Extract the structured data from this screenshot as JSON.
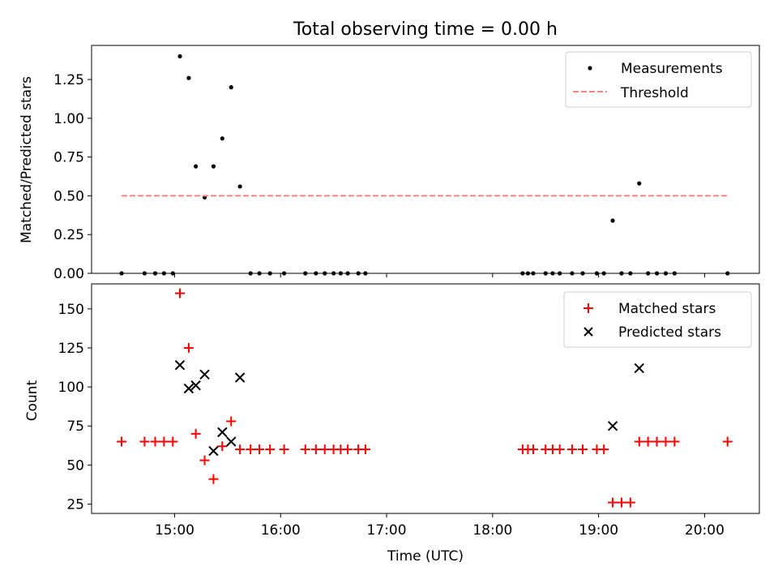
{
  "title": "Total observing time = 0.00 h",
  "xlabel": "Time (UTC)",
  "chart_data": [
    {
      "type": "scatter",
      "ylabel": "Matched/Predicted stars",
      "ylim": [
        0,
        1.47
      ],
      "xlim": [
        "14:13",
        "20:31"
      ],
      "xticks": [
        "15:00",
        "16:00",
        "17:00",
        "18:00",
        "19:00",
        "20:00"
      ],
      "show_xtick_labels": false,
      "yticks": [
        "0.00",
        "0.25",
        "0.50",
        "0.75",
        "1.00",
        "1.25"
      ],
      "ytick_values": [
        0,
        0.25,
        0.5,
        0.75,
        1.0,
        1.25
      ],
      "legend": "top-right",
      "series": [
        {
          "name": "Measurements",
          "marker": "dot",
          "color": "#000000",
          "points": [
            [
              "14:30",
              0
            ],
            [
              "14:43",
              0
            ],
            [
              "14:49",
              0
            ],
            [
              "14:54",
              0
            ],
            [
              "14:59",
              0
            ],
            [
              "15:03",
              1.4
            ],
            [
              "15:08",
              1.26
            ],
            [
              "15:12",
              0.69
            ],
            [
              "15:17",
              0.49
            ],
            [
              "15:22",
              0.69
            ],
            [
              "15:27",
              0.87
            ],
            [
              "15:32",
              1.2
            ],
            [
              "15:37",
              0.56
            ],
            [
              "15:43",
              0
            ],
            [
              "15:48",
              0
            ],
            [
              "15:54",
              0
            ],
            [
              "16:02",
              0
            ],
            [
              "16:14",
              0
            ],
            [
              "16:20",
              0
            ],
            [
              "16:25",
              0
            ],
            [
              "16:30",
              0
            ],
            [
              "16:34",
              0
            ],
            [
              "16:38",
              0
            ],
            [
              "16:44",
              0
            ],
            [
              "16:48",
              0
            ],
            [
              "18:17",
              0
            ],
            [
              "18:20",
              0
            ],
            [
              "18:23",
              0
            ],
            [
              "18:30",
              0
            ],
            [
              "18:34",
              0
            ],
            [
              "18:38",
              0
            ],
            [
              "18:45",
              0
            ],
            [
              "18:51",
              0
            ],
            [
              "18:59",
              0
            ],
            [
              "19:03",
              0
            ],
            [
              "19:08",
              0.34
            ],
            [
              "19:13",
              0
            ],
            [
              "19:18",
              0
            ],
            [
              "19:23",
              0.58
            ],
            [
              "19:28",
              0
            ],
            [
              "19:33",
              0
            ],
            [
              "19:38",
              0
            ],
            [
              "19:43",
              0
            ],
            [
              "20:13",
              0
            ]
          ]
        },
        {
          "name": "Threshold",
          "type": "line",
          "style": "dashed",
          "color": "#ff8080",
          "points": [
            [
              "14:30",
              0.5
            ],
            [
              "20:13",
              0.5
            ]
          ]
        }
      ]
    },
    {
      "type": "scatter",
      "ylabel": "Count",
      "ylim": [
        19,
        166
      ],
      "xlim": [
        "14:13",
        "20:31"
      ],
      "xticks": [
        "15:00",
        "16:00",
        "17:00",
        "18:00",
        "19:00",
        "20:00"
      ],
      "xtick_labels": [
        "15:00",
        "16:00",
        "17:00",
        "18:00",
        "19:00",
        "20:00"
      ],
      "yticks": [
        "25",
        "50",
        "75",
        "100",
        "125",
        "150"
      ],
      "ytick_values": [
        25,
        50,
        75,
        100,
        125,
        150
      ],
      "legend": "top-right",
      "series": [
        {
          "name": "Matched stars",
          "marker": "plus",
          "color": "#ff0000",
          "points": [
            [
              "14:30",
              65
            ],
            [
              "14:43",
              65
            ],
            [
              "14:49",
              65
            ],
            [
              "14:54",
              65
            ],
            [
              "14:59",
              65
            ],
            [
              "15:03",
              160
            ],
            [
              "15:08",
              125
            ],
            [
              "15:12",
              70
            ],
            [
              "15:17",
              53
            ],
            [
              "15:22",
              41
            ],
            [
              "15:27",
              62
            ],
            [
              "15:32",
              78
            ],
            [
              "15:37",
              60
            ],
            [
              "15:43",
              60
            ],
            [
              "15:48",
              60
            ],
            [
              "15:54",
              60
            ],
            [
              "16:02",
              60
            ],
            [
              "16:14",
              60
            ],
            [
              "16:20",
              60
            ],
            [
              "16:25",
              60
            ],
            [
              "16:30",
              60
            ],
            [
              "16:34",
              60
            ],
            [
              "16:38",
              60
            ],
            [
              "16:44",
              60
            ],
            [
              "16:48",
              60
            ],
            [
              "18:17",
              60
            ],
            [
              "18:20",
              60
            ],
            [
              "18:23",
              60
            ],
            [
              "18:30",
              60
            ],
            [
              "18:34",
              60
            ],
            [
              "18:38",
              60
            ],
            [
              "18:45",
              60
            ],
            [
              "18:51",
              60
            ],
            [
              "18:59",
              60
            ],
            [
              "19:03",
              60
            ],
            [
              "19:08",
              26
            ],
            [
              "19:13",
              26
            ],
            [
              "19:18",
              26
            ],
            [
              "19:23",
              65
            ],
            [
              "19:28",
              65
            ],
            [
              "19:33",
              65
            ],
            [
              "19:38",
              65
            ],
            [
              "19:43",
              65
            ],
            [
              "20:13",
              65
            ]
          ]
        },
        {
          "name": "Predicted stars",
          "marker": "x",
          "color": "#000000",
          "points": [
            [
              "15:03",
              114
            ],
            [
              "15:08",
              99
            ],
            [
              "15:12",
              101
            ],
            [
              "15:17",
              108
            ],
            [
              "15:22",
              59
            ],
            [
              "15:27",
              71
            ],
            [
              "15:32",
              65
            ],
            [
              "15:37",
              106
            ],
            [
              "19:08",
              75
            ],
            [
              "19:23",
              112
            ]
          ]
        }
      ]
    }
  ]
}
